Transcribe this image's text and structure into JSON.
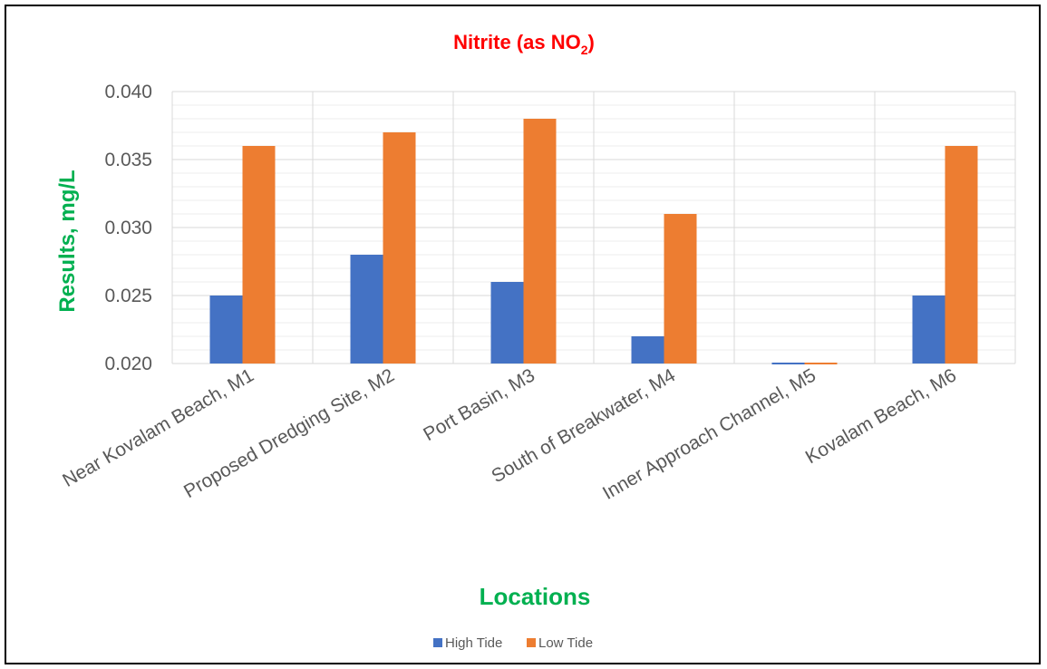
{
  "chart_data": {
    "type": "bar",
    "title": "Nitrite (as NO",
    "title_subscript": "2",
    "title_suffix": ")",
    "xlabel": "Locations",
    "ylabel": "Results, mg/L",
    "categories": [
      "Near Kovalam Beach, M1",
      "Proposed Dredging Site, M2",
      "Port Basin, M3",
      "South of Breakwater, M4",
      "Inner Approach Channel, M5",
      "Kovalam Beach, M6"
    ],
    "series": [
      {
        "name": "High Tide",
        "color": "#4472c4",
        "values": [
          0.025,
          0.028,
          0.026,
          0.022,
          0.02,
          0.025
        ]
      },
      {
        "name": "Low Tide",
        "color": "#ed7d31",
        "values": [
          0.036,
          0.037,
          0.038,
          0.031,
          0.02,
          0.036
        ]
      }
    ],
    "ylim": [
      0.02,
      0.04
    ],
    "yticks": [
      "0.020",
      "0.025",
      "0.030",
      "0.035",
      "0.040"
    ],
    "ytick_values": [
      0.02,
      0.025,
      0.03,
      0.035,
      0.04
    ],
    "minor_grid_step": 0.001,
    "grid": true,
    "legend_position": "bottom",
    "colors": {
      "title": "#ff0000",
      "axis_labels": "#00b050",
      "ticks": "#595959",
      "grid": "#d9d9d9"
    }
  }
}
